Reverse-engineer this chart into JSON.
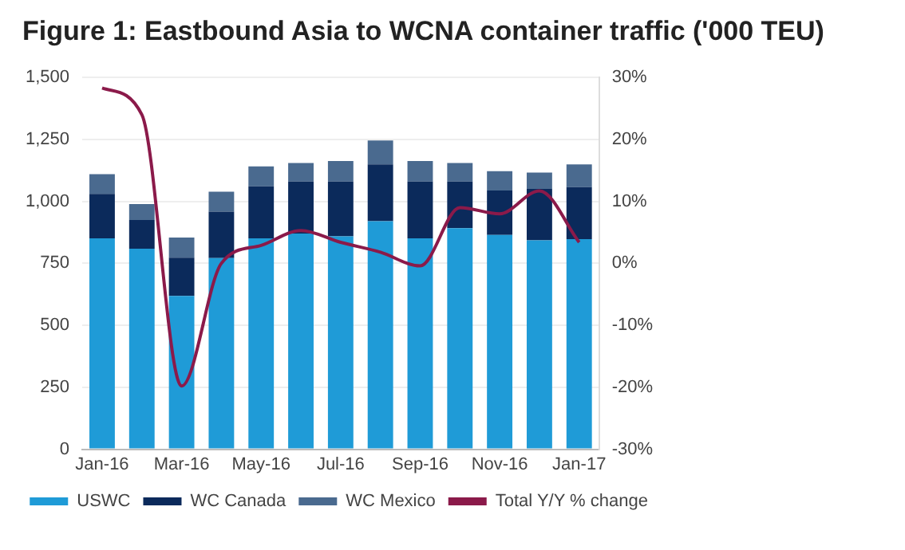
{
  "chart_data": {
    "type": "bar",
    "title": "Figure 1: Eastbound Asia to WCNA container traffic ('000 TEU)",
    "categories": [
      "Jan-16",
      null,
      "Mar-16",
      null,
      "May-16",
      null,
      "Jul-16",
      null,
      "Sep-16",
      null,
      "Nov-16",
      null,
      "Jan-17"
    ],
    "stacked": true,
    "series": [
      {
        "name": "USWC",
        "color": "#1f9bd7",
        "values": [
          851,
          809,
          619,
          771,
          851,
          870,
          859,
          920,
          851,
          892,
          865,
          843,
          848
        ]
      },
      {
        "name": "WC Canada",
        "color": "#0b2a5b",
        "values": [
          179,
          116,
          154,
          188,
          210,
          210,
          221,
          229,
          229,
          188,
          179,
          207,
          210
        ]
      },
      {
        "name": "WC Mexico",
        "color": "#4a6a8f",
        "values": [
          80,
          64,
          81,
          80,
          80,
          75,
          83,
          97,
          83,
          75,
          78,
          66,
          91
        ]
      },
      {
        "name": "Total Y/Y % change",
        "type": "line",
        "axis": "y2",
        "color": "#8b1a4a",
        "values": [
          28.3,
          24,
          -19.8,
          0,
          2.9,
          5.3,
          3.4,
          1.8,
          -0.4,
          9,
          8,
          11.7,
          3.4
        ]
      }
    ],
    "ylim": [
      0,
      1500
    ],
    "yticks": [
      0,
      250,
      500,
      750,
      {
        "value": 1000,
        "label": "1,000"
      },
      {
        "value": 1250,
        "label": "1,250"
      },
      {
        "value": 1500,
        "label": "1,500"
      }
    ],
    "y2lim": [
      -30,
      30
    ],
    "y2ticks": [
      {
        "value": -30,
        "label": "-30%"
      },
      {
        "value": -20,
        "label": "-20%"
      },
      {
        "value": -10,
        "label": "-10%"
      },
      {
        "value": 0,
        "label": "0%"
      },
      {
        "value": 10,
        "label": "10%"
      },
      {
        "value": 20,
        "label": "20%"
      },
      {
        "value": 30,
        "label": "30%"
      }
    ],
    "grid": "y",
    "legend": "bottom",
    "marker": "none"
  }
}
